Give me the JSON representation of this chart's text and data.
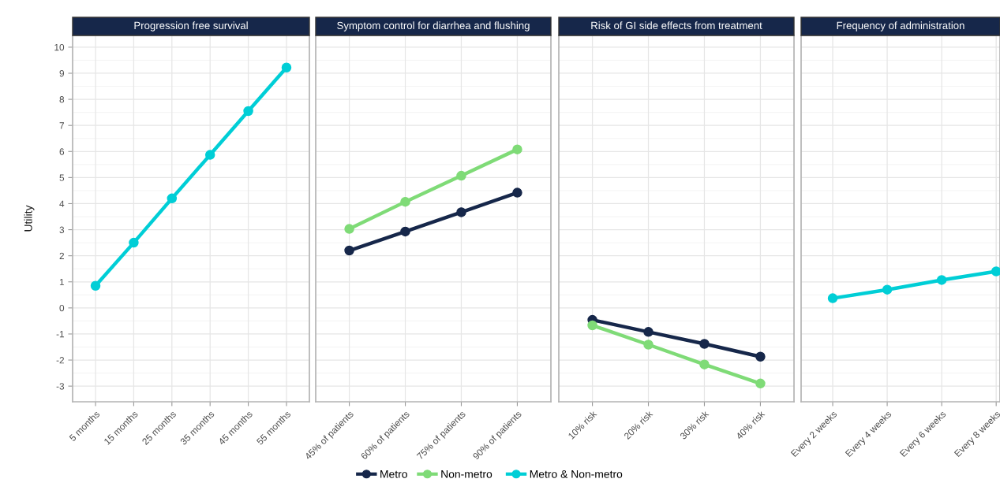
{
  "chart_data": [
    {
      "type": "line",
      "title": "Progression free survival",
      "ylabel": "Utility",
      "categories": [
        "5 months",
        "15 months",
        "25 months",
        "35 months",
        "45 months",
        "55 months"
      ],
      "ylim": [
        -3.6,
        10.45
      ],
      "yticks": [
        -3,
        -2,
        -1,
        0,
        1,
        2,
        3,
        4,
        5,
        6,
        7,
        8,
        9,
        10
      ],
      "grid": true,
      "marker": "circle",
      "line_style": "solid",
      "legend": "bottom",
      "series": [
        {
          "name": "Metro & Non-metro",
          "color": "#00ced6",
          "values": [
            0.85,
            2.5,
            4.2,
            5.87,
            7.55,
            9.22
          ]
        }
      ]
    },
    {
      "type": "line",
      "title": "Symptom control for diarrhea and flushing",
      "categories": [
        "45% of patients",
        "60% of patients",
        "75% of patients",
        "90% of patients"
      ],
      "ylim": [
        -3.6,
        10.45
      ],
      "yticks": [
        -3,
        -2,
        -1,
        0,
        1,
        2,
        3,
        4,
        5,
        6,
        7,
        8,
        9,
        10
      ],
      "tick_labels": "x",
      "grid": true,
      "marker": "circle",
      "line_style": "solid",
      "legend": "bottom",
      "series": [
        {
          "name": "Metro",
          "color": "#16274a",
          "values": [
            2.2,
            2.93,
            3.67,
            4.42
          ]
        },
        {
          "name": "Non-metro",
          "color": "#7fdb77",
          "values": [
            3.03,
            4.07,
            5.07,
            6.08
          ]
        }
      ]
    },
    {
      "type": "line",
      "title": "Risk of GI side effects from treatment",
      "categories": [
        "10% risk",
        "20% risk",
        "30% risk",
        "40% risk"
      ],
      "ylim": [
        -3.6,
        10.45
      ],
      "yticks": [
        -3,
        -2,
        -1,
        0,
        1,
        2,
        3,
        4,
        5,
        6,
        7,
        8,
        9,
        10
      ],
      "tick_labels": "x",
      "grid": true,
      "marker": "circle",
      "line_style": "solid",
      "series": [
        {
          "color": "#16274a",
          "values": [
            -0.46,
            -0.92,
            -1.38,
            -1.87
          ]
        },
        {
          "color": "#7fdb77",
          "values": [
            -0.67,
            -1.41,
            -2.17,
            -2.9
          ]
        }
      ]
    },
    {
      "type": "line",
      "title": "Frequency of administration",
      "categories": [
        "Every 2 weeks",
        "Every 4 weeks",
        "Every 6 weeks",
        "Every 8 weeks"
      ],
      "ylim": [
        -3.6,
        10.45
      ],
      "yticks": [
        -3,
        -2,
        -1,
        0,
        1,
        2,
        3,
        4,
        5,
        6,
        7,
        8,
        9,
        10
      ],
      "tick_labels": "x",
      "grid": true,
      "marker": "circle",
      "line_style": "solid",
      "series": [
        {
          "color": "#00ced6",
          "values": [
            0.37,
            0.7,
            1.07,
            1.4
          ]
        }
      ]
    }
  ]
}
